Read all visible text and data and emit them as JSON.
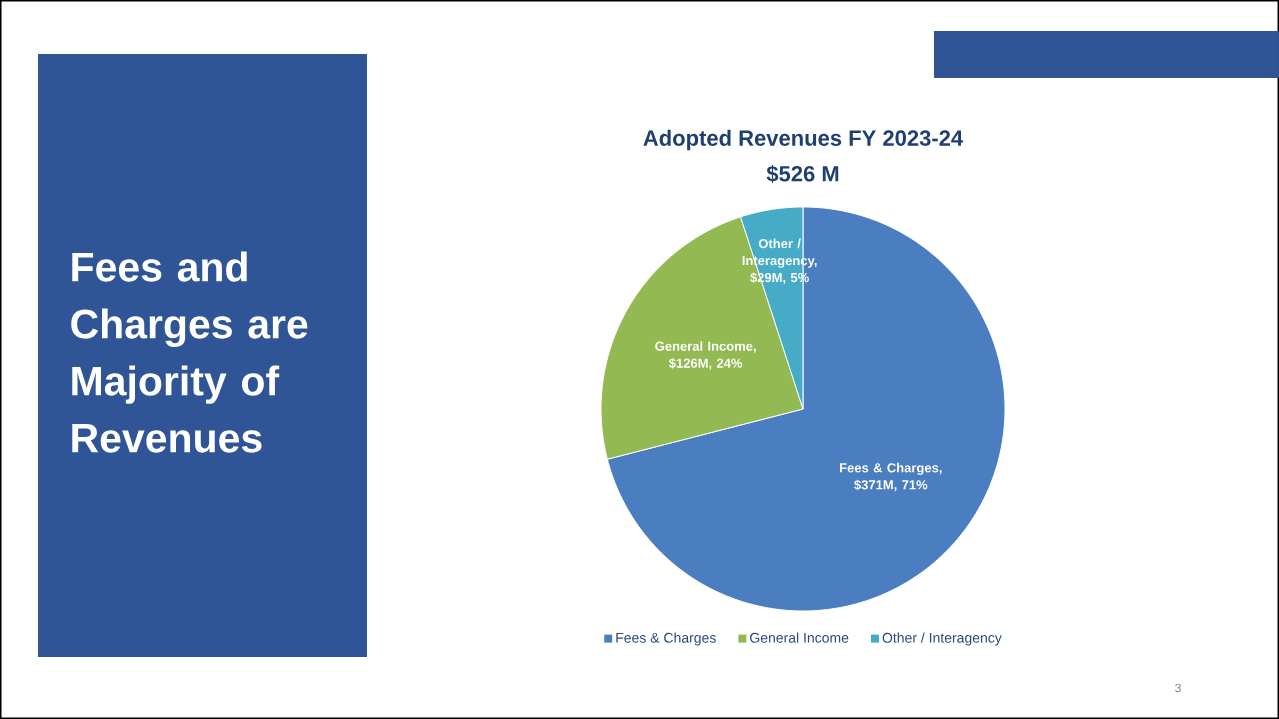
{
  "chart_data": {
    "type": "pie",
    "title": "Adopted Revenues FY 2023-24",
    "subtitle": "$526 M",
    "categories": [
      "Fees & Charges",
      "General Income",
      "Other / Interagency"
    ],
    "values": [
      71,
      24,
      5
    ],
    "value_labels": [
      "Fees & Charges, $371M, 71%",
      "General Income, $126M, 24%",
      "Other / Interagency, $29M, 5%"
    ],
    "colors": [
      "#4a7ec0",
      "#93b952",
      "#45abc6"
    ],
    "legend": "bottom",
    "annotations": [
      "Fees and Charges are Majority of Revenues",
      "3"
    ]
  }
}
